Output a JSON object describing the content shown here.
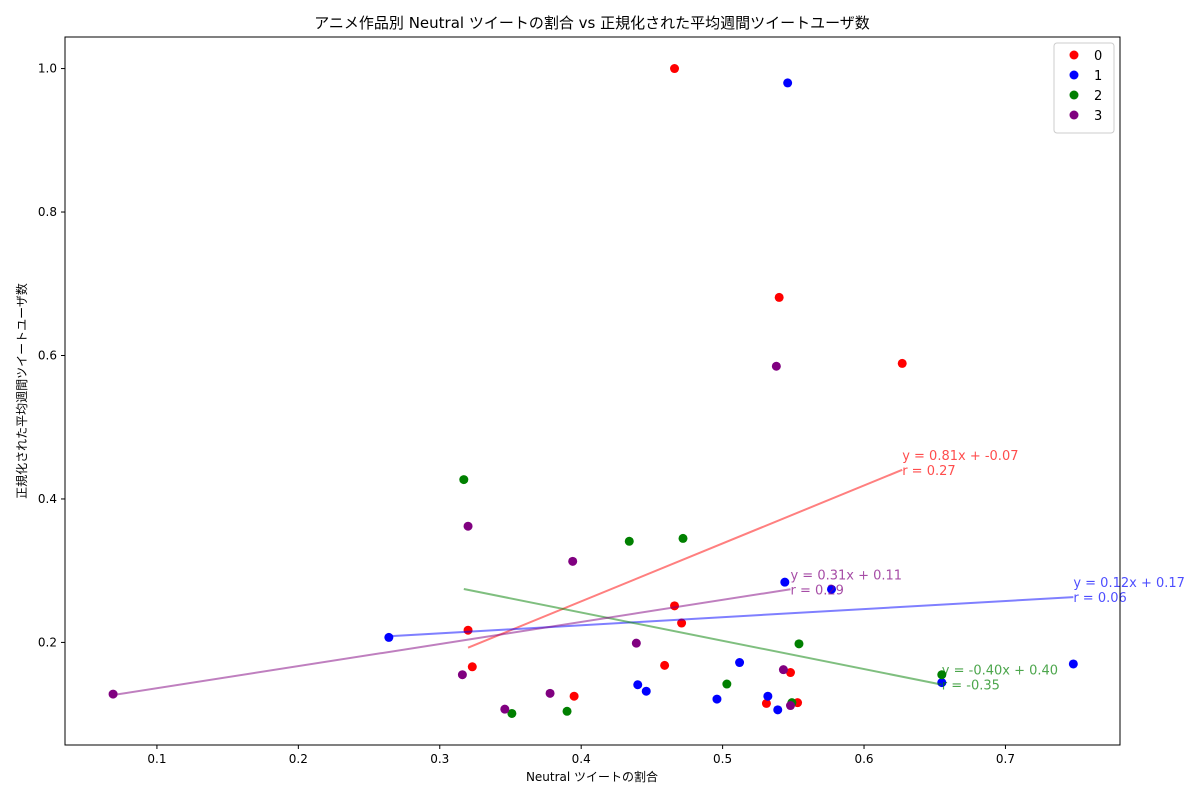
{
  "chart_data": {
    "type": "scatter",
    "title": "アニメ作品別 Neutral ツイートの割合 vs 正規化された平均週間ツイートユーザ数",
    "xlabel": "Neutral ツイートの割合",
    "ylabel": "正規化された平均週間ツイートユーザ数",
    "xlim": [
      0.035,
      0.781
    ],
    "ylim": [
      0.057,
      1.044
    ],
    "xticks": [
      0.1,
      0.2,
      0.3,
      0.4,
      0.5,
      0.6,
      0.7
    ],
    "yticks": [
      0.2,
      0.4,
      0.6,
      0.8,
      1.0
    ],
    "xtick_labels": [
      "0.1",
      "0.2",
      "0.3",
      "0.4",
      "0.5",
      "0.6",
      "0.7"
    ],
    "ytick_labels": [
      "0.2",
      "0.4",
      "0.6",
      "0.8",
      "1.0"
    ],
    "grid": false,
    "legend_position": "top-right",
    "series": [
      {
        "name": "0",
        "color": "#ff0000",
        "points": [
          [
            0.466,
            1.0
          ],
          [
            0.54,
            0.681
          ],
          [
            0.627,
            0.589
          ],
          [
            0.32,
            0.217
          ],
          [
            0.323,
            0.166
          ],
          [
            0.395,
            0.125
          ],
          [
            0.459,
            0.168
          ],
          [
            0.466,
            0.251
          ],
          [
            0.471,
            0.227
          ],
          [
            0.531,
            0.115
          ],
          [
            0.548,
            0.158
          ],
          [
            0.553,
            0.116
          ]
        ],
        "fit_x": [
          0.32,
          0.627
        ],
        "fit_label": "y = 0.81x + -0.07",
        "r_label": "r = 0.27"
      },
      {
        "name": "1",
        "color": "#0000ff",
        "points": [
          [
            0.546,
            0.98
          ],
          [
            0.264,
            0.207
          ],
          [
            0.44,
            0.141
          ],
          [
            0.446,
            0.132
          ],
          [
            0.496,
            0.121
          ],
          [
            0.512,
            0.172
          ],
          [
            0.532,
            0.125
          ],
          [
            0.539,
            0.106
          ],
          [
            0.544,
            0.284
          ],
          [
            0.577,
            0.274
          ],
          [
            0.655,
            0.144
          ],
          [
            0.748,
            0.17
          ]
        ],
        "fit_x": [
          0.264,
          0.748
        ],
        "fit_label": "y = 0.12x + 0.17",
        "r_label": "r = 0.06"
      },
      {
        "name": "2",
        "color": "#008000",
        "points": [
          [
            0.317,
            0.427
          ],
          [
            0.351,
            0.101
          ],
          [
            0.39,
            0.104
          ],
          [
            0.434,
            0.341
          ],
          [
            0.472,
            0.345
          ],
          [
            0.503,
            0.142
          ],
          [
            0.549,
            0.116
          ],
          [
            0.554,
            0.198
          ],
          [
            0.655,
            0.155
          ]
        ],
        "fit_x": [
          0.317,
          0.655
        ],
        "fit_label": "y = -0.40x + 0.40",
        "r_label": "r = -0.35"
      },
      {
        "name": "3",
        "color": "#800080",
        "points": [
          [
            0.069,
            0.128
          ],
          [
            0.316,
            0.155
          ],
          [
            0.32,
            0.362
          ],
          [
            0.346,
            0.107
          ],
          [
            0.378,
            0.129
          ],
          [
            0.394,
            0.313
          ],
          [
            0.439,
            0.199
          ],
          [
            0.538,
            0.585
          ],
          [
            0.543,
            0.162
          ],
          [
            0.548,
            0.112
          ]
        ],
        "fit_x": [
          0.069,
          0.548
        ],
        "fit_label": "y = 0.31x + 0.11",
        "r_label": "r = 0.29"
      }
    ]
  }
}
